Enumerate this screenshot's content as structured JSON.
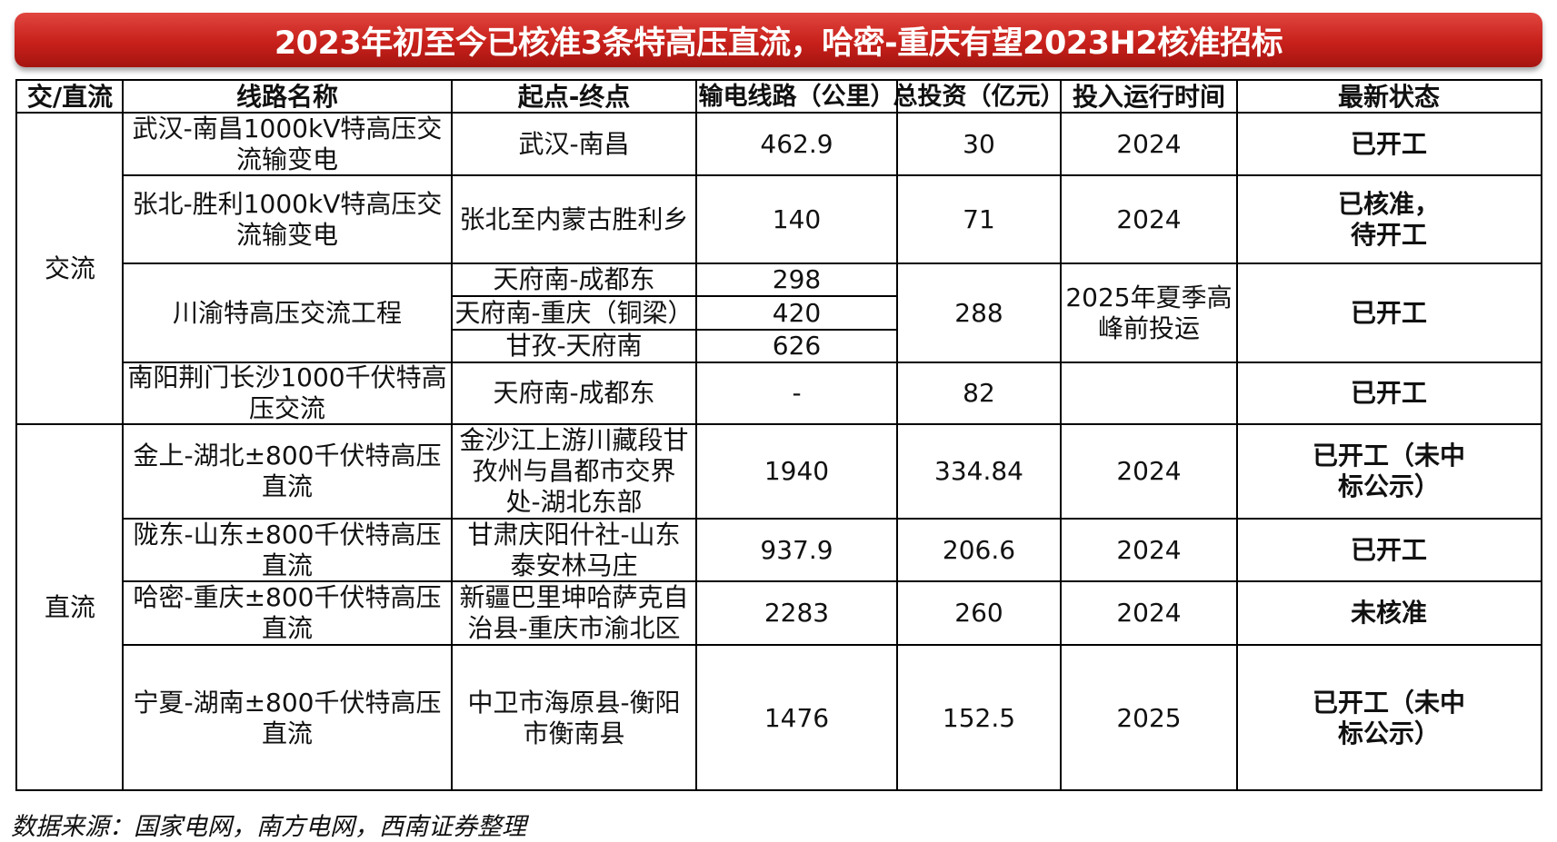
{
  "banner": {
    "title": "2023年初至今已核准3条特高压直流，哈密-重庆有望2023H2核准招标"
  },
  "table": {
    "headers": [
      "交/直流",
      "线路名称",
      "起点-终点",
      "输电线路（公里）",
      "总投资（亿元）",
      "投入运行时间",
      "最新状态"
    ],
    "groups": [
      {
        "type": "交流"
      },
      {
        "type": "直流"
      }
    ],
    "rows": [
      {
        "name": "武汉-南昌1000kV特高压交流输变电",
        "route": "武汉-南昌",
        "length": "462.9",
        "investment": "30",
        "operation": "2024",
        "status": "已开工"
      },
      {
        "name": "张北-胜利1000kV特高压交流输变电",
        "route": "张北至内蒙古胜利乡",
        "length": "140",
        "investment": "71",
        "operation": "2024",
        "status": "已核准，待开工"
      },
      {
        "name": "川渝特高压交流工程",
        "segments": [
          {
            "route": "天府南-成都东",
            "length": "298"
          },
          {
            "route": "天府南-重庆（铜梁）",
            "length": "420"
          },
          {
            "route": "甘孜-天府南",
            "length": "626"
          }
        ],
        "investment": "288",
        "operation": "2025年夏季高峰前投运",
        "status": "已开工"
      },
      {
        "name": "南阳荆门长沙1000千伏特高压交流",
        "route": "天府南-成都东",
        "length": "-",
        "investment": "82",
        "operation": "",
        "status": "已开工"
      },
      {
        "name": "金上-湖北±800千伏特高压直流",
        "route": "金沙江上游川藏段甘孜州与昌都市交界处-湖北东部",
        "length": "1940",
        "investment": "334.84",
        "operation": "2024",
        "status": "已开工（未中标公示）"
      },
      {
        "name": "陇东-山东±800千伏特高压直流",
        "route": "甘肃庆阳什社-山东泰安林马庄",
        "length": "937.9",
        "investment": "206.6",
        "operation": "2024",
        "status": "已开工"
      },
      {
        "name": "哈密-重庆±800千伏特高压直流",
        "route": "新疆巴里坤哈萨克自治县-重庆市渝北区",
        "length": "2283",
        "investment": "260",
        "operation": "2024",
        "status": "未核准"
      },
      {
        "name": "宁夏-湖南±800千伏特高压直流",
        "route": "中卫市海原县-衡阳市衡南县",
        "length": "1476",
        "investment": "152.5",
        "operation": "2025",
        "status": "已开工（未中标公示）"
      }
    ]
  },
  "footer": {
    "source": "数据来源：国家电网，南方电网，西南证券整理"
  }
}
